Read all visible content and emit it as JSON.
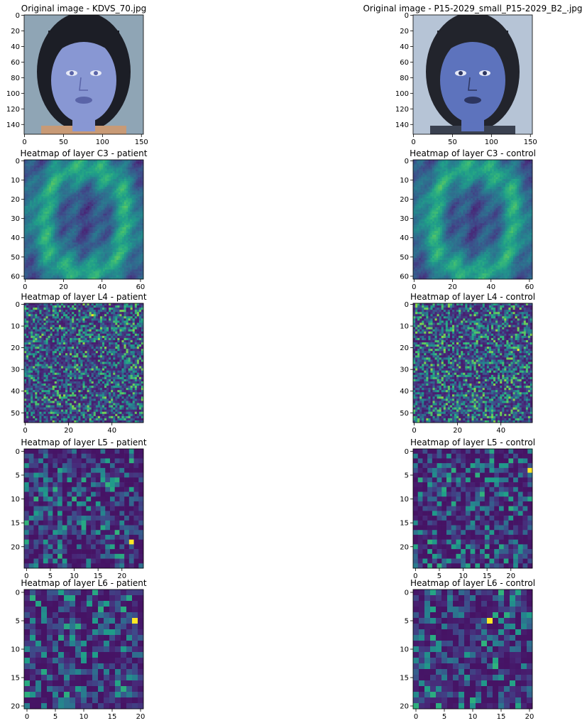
{
  "chart_data": [
    {
      "type": "image",
      "title": "Original image - KDVS_70.jpg",
      "xlim": [
        0,
        153
      ],
      "ylim": [
        153,
        0
      ],
      "xticks": [
        0,
        50,
        100,
        150
      ],
      "yticks": [
        0,
        20,
        40,
        60,
        80,
        100,
        120,
        140
      ],
      "colormap": "blue-tinted photo",
      "face": {
        "hair": "#1c1e26",
        "skin": "#8897d3",
        "bg": "#8fa5b5",
        "features": "#5a64a8",
        "shirt": "#c89a76"
      }
    },
    {
      "type": "image",
      "title": "Original image - P15-2029_small_P15-2029_B2_.jpg",
      "xlim": [
        0,
        153
      ],
      "ylim": [
        153,
        0
      ],
      "xticks": [
        0,
        50,
        100,
        150
      ],
      "yticks": [
        0,
        20,
        40,
        60,
        80,
        100,
        120,
        140
      ],
      "colormap": "blue-tinted photo",
      "face": {
        "hair": "#22242c",
        "skin": "#5d73bd",
        "bg": "#b6c4d6",
        "features": "#2c3560",
        "shirt": "#3a4150"
      }
    },
    {
      "type": "heatmap",
      "title": "Heatmap of layer C3 - patient",
      "size": 62,
      "xticks": [
        0,
        20,
        40,
        60
      ],
      "yticks": [
        0,
        10,
        20,
        30,
        40,
        50,
        60
      ],
      "colormap": "viridis",
      "pattern": "smooth",
      "seed": 11
    },
    {
      "type": "heatmap",
      "title": "Heatmap of layer C3 - control",
      "size": 62,
      "xticks": [
        0,
        20,
        40,
        60
      ],
      "yticks": [
        0,
        10,
        20,
        30,
        40,
        50,
        60
      ],
      "colormap": "viridis",
      "pattern": "smooth",
      "seed": 23
    },
    {
      "type": "heatmap",
      "title": "Heatmap of layer L4 - patient",
      "size": 55,
      "xticks": [
        0,
        20,
        40
      ],
      "yticks": [
        0,
        10,
        20,
        30,
        40,
        50
      ],
      "colormap": "viridis",
      "pattern": "noise",
      "seed": 37
    },
    {
      "type": "heatmap",
      "title": "Heatmap of layer L4 - control",
      "size": 55,
      "xticks": [
        0,
        20,
        40
      ],
      "yticks": [
        0,
        10,
        20,
        30,
        40,
        50
      ],
      "colormap": "viridis",
      "pattern": "noise",
      "seed": 41
    },
    {
      "type": "heatmap",
      "title": "Heatmap of layer L5 - patient",
      "size": 25,
      "xticks": [
        0,
        5,
        10,
        15,
        20
      ],
      "yticks": [
        0,
        5,
        10,
        15,
        20
      ],
      "colormap": "viridis",
      "pattern": "blocks",
      "seed": 53
    },
    {
      "type": "heatmap",
      "title": "Heatmap of layer L5 - control",
      "size": 25,
      "xticks": [
        0,
        5,
        10,
        15,
        20
      ],
      "yticks": [
        0,
        5,
        10,
        15,
        20
      ],
      "colormap": "viridis",
      "pattern": "blocks",
      "seed": 67
    },
    {
      "type": "heatmap",
      "title": "Heatmap of layer L6 - patient",
      "size": 21,
      "xticks": [
        0,
        5,
        10,
        15,
        20
      ],
      "yticks": [
        0,
        5,
        10,
        15,
        20
      ],
      "colormap": "viridis",
      "pattern": "blocks",
      "seed": 71
    },
    {
      "type": "heatmap",
      "title": "Heatmap of layer L6 - control",
      "size": 21,
      "xticks": [
        0,
        5,
        10,
        15,
        20
      ],
      "yticks": [
        0,
        5,
        10,
        15,
        20
      ],
      "colormap": "viridis",
      "pattern": "blocks",
      "seed": 89
    }
  ]
}
